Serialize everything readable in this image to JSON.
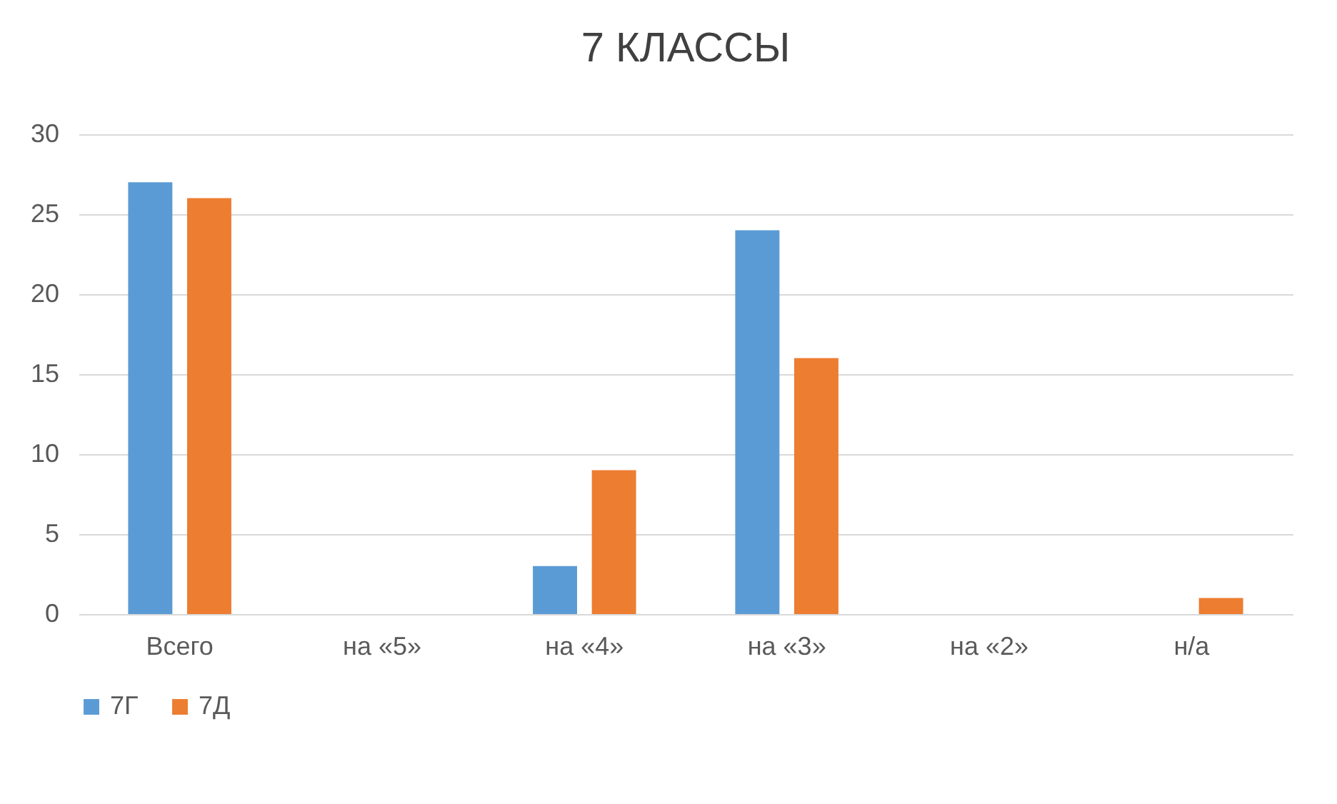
{
  "chart_data": {
    "type": "bar",
    "title": "7 КЛАССЫ",
    "categories": [
      "Всего",
      "на «5»",
      "на «4»",
      "на «3»",
      "на «2»",
      "н/а"
    ],
    "series": [
      {
        "name": "7Г",
        "color": "#5b9bd5",
        "values": [
          27,
          0,
          3,
          24,
          0,
          0
        ]
      },
      {
        "name": "7Д",
        "color": "#ed7d31",
        "values": [
          26,
          0,
          9,
          16,
          0,
          1
        ]
      }
    ],
    "ylim": [
      0,
      30
    ],
    "yticks": [
      0,
      5,
      10,
      15,
      20,
      25,
      30
    ],
    "grid": "y",
    "legend": "bottom"
  }
}
